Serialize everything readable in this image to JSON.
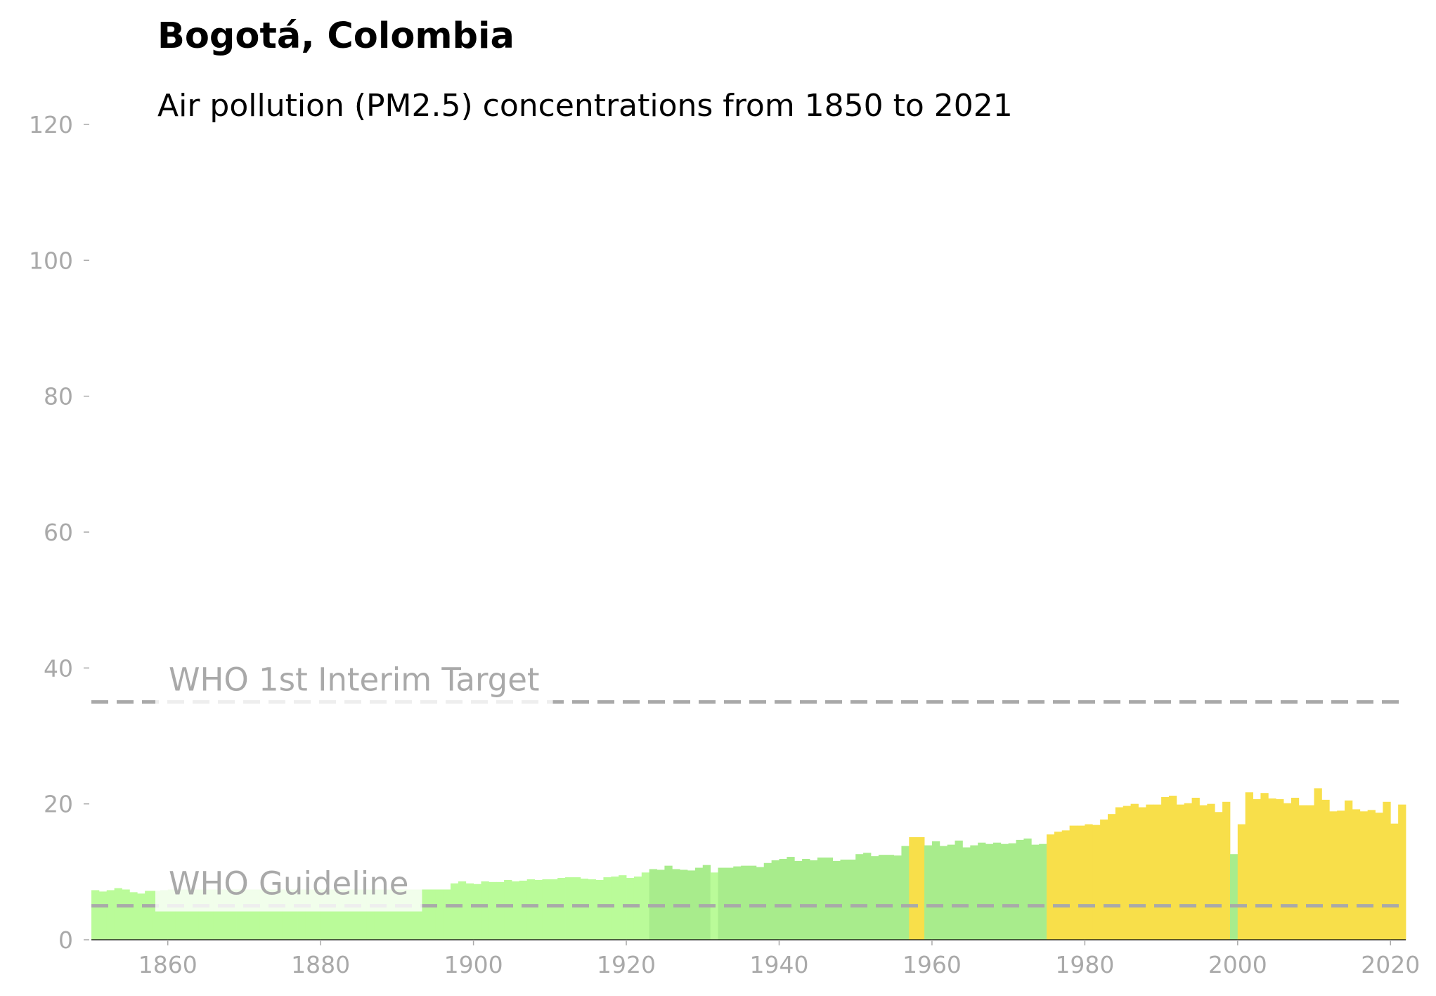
{
  "chart_data": {
    "type": "bar",
    "title": "Bogotá, Colombia",
    "subtitle": "Air pollution (PM2.5) concentrations from 1850 to 2021",
    "x": [
      1850,
      1851,
      1852,
      1853,
      1854,
      1855,
      1856,
      1857,
      1858,
      1859,
      1860,
      1861,
      1862,
      1863,
      1864,
      1865,
      1866,
      1867,
      1868,
      1869,
      1870,
      1871,
      1872,
      1873,
      1874,
      1875,
      1876,
      1877,
      1878,
      1879,
      1880,
      1881,
      1882,
      1883,
      1884,
      1885,
      1886,
      1887,
      1888,
      1889,
      1890,
      1891,
      1892,
      1893,
      1894,
      1895,
      1896,
      1897,
      1898,
      1899,
      1900,
      1901,
      1902,
      1903,
      1904,
      1905,
      1906,
      1907,
      1908,
      1909,
      1910,
      1911,
      1912,
      1913,
      1914,
      1915,
      1916,
      1917,
      1918,
      1919,
      1920,
      1921,
      1922,
      1923,
      1924,
      1925,
      1926,
      1927,
      1928,
      1929,
      1930,
      1931,
      1932,
      1933,
      1934,
      1935,
      1936,
      1937,
      1938,
      1939,
      1940,
      1941,
      1942,
      1943,
      1944,
      1945,
      1946,
      1947,
      1948,
      1949,
      1950,
      1951,
      1952,
      1953,
      1954,
      1955,
      1956,
      1957,
      1958,
      1959,
      1960,
      1961,
      1962,
      1963,
      1964,
      1965,
      1966,
      1967,
      1968,
      1969,
      1970,
      1971,
      1972,
      1973,
      1974,
      1975,
      1976,
      1977,
      1978,
      1979,
      1980,
      1981,
      1982,
      1983,
      1984,
      1985,
      1986,
      1987,
      1988,
      1989,
      1990,
      1991,
      1992,
      1993,
      1994,
      1995,
      1996,
      1997,
      1998,
      1999,
      2000,
      2001,
      2002,
      2003,
      2004,
      2005,
      2006,
      2007,
      2008,
      2009,
      2010,
      2011,
      2012,
      2013,
      2014,
      2015,
      2016,
      2017,
      2018,
      2019,
      2020,
      2021
    ],
    "values": [
      7.3,
      7.1,
      7.3,
      7.6,
      7.4,
      7.0,
      6.8,
      7.2,
      7.2,
      7.3,
      7.4,
      7.4,
      7.4,
      7.4,
      7.4,
      7.4,
      7.4,
      7.4,
      7.4,
      7.4,
      7.4,
      7.4,
      7.4,
      7.4,
      7.4,
      7.4,
      7.4,
      7.4,
      7.4,
      7.4,
      7.4,
      7.4,
      7.4,
      7.4,
      7.4,
      7.4,
      7.4,
      7.4,
      7.4,
      7.4,
      7.4,
      7.4,
      7.4,
      7.4,
      7.4,
      7.4,
      7.4,
      8.3,
      8.6,
      8.3,
      8.2,
      8.6,
      8.5,
      8.5,
      8.8,
      8.6,
      8.7,
      8.9,
      8.8,
      8.9,
      8.9,
      9.1,
      9.2,
      9.2,
      9.0,
      8.9,
      8.8,
      9.2,
      9.3,
      9.5,
      9.1,
      9.3,
      9.9,
      10.4,
      10.3,
      10.9,
      10.4,
      10.3,
      10.2,
      10.6,
      11.0,
      9.9,
      10.6,
      10.6,
      10.8,
      10.9,
      10.9,
      10.7,
      11.3,
      11.7,
      11.9,
      12.2,
      11.6,
      11.9,
      11.7,
      12.1,
      12.1,
      11.6,
      11.8,
      11.8,
      12.6,
      12.8,
      12.3,
      12.5,
      12.5,
      12.4,
      13.8,
      15.1,
      15.1,
      13.9,
      14.5,
      13.8,
      14.0,
      14.6,
      13.6,
      13.9,
      14.3,
      14.1,
      14.3,
      14.1,
      14.2,
      14.7,
      14.9,
      14.0,
      14.1,
      15.5,
      15.9,
      16.1,
      16.8,
      16.8,
      17.0,
      16.9,
      17.7,
      18.5,
      19.5,
      19.7,
      20.0,
      19.5,
      19.9,
      19.9,
      21.0,
      21.2,
      19.9,
      20.1,
      20.9,
      19.8,
      20.0,
      18.8,
      20.3,
      12.6,
      17.0,
      21.7,
      20.7,
      21.6,
      20.8,
      20.7,
      20.1,
      20.9,
      19.8,
      19.8,
      22.3,
      20.6,
      18.9,
      19.0,
      20.5,
      19.2,
      18.9,
      19.1,
      18.7,
      20.3,
      17.1,
      19.9
    ],
    "color_bands": [
      {
        "below": 10,
        "color": "#bafb99"
      },
      {
        "below": 15,
        "color": "#a8ec8c"
      },
      {
        "below": 1000,
        "color": "#f8df4a"
      }
    ],
    "xlim": [
      1850,
      2022
    ],
    "xticks": [
      1860,
      1880,
      1900,
      1920,
      1940,
      1960,
      1980,
      2000,
      2020
    ],
    "ylim": [
      0,
      120
    ],
    "yticks": [
      0,
      20,
      40,
      60,
      80,
      100,
      120
    ],
    "reference_lines": [
      {
        "value": 35,
        "label": "WHO 1st Interim Target"
      },
      {
        "value": 5,
        "label": "WHO Guideline"
      }
    ],
    "grid": false
  }
}
